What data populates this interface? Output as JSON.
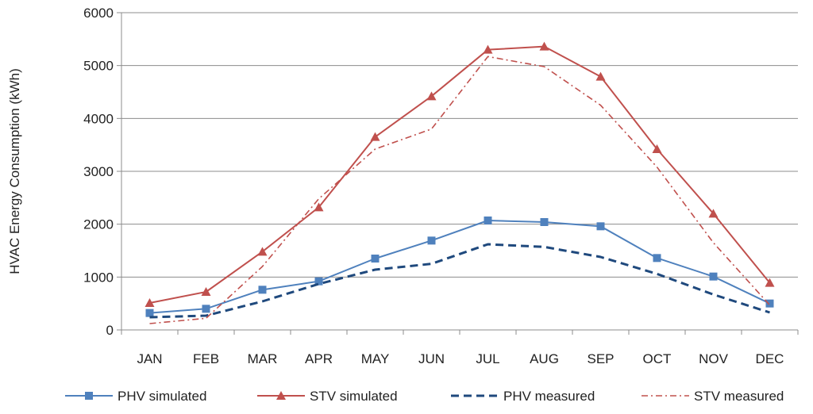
{
  "chart_data": {
    "type": "line",
    "title": "",
    "xlabel": "",
    "ylabel": "HVAC Energy Consumption (kWh)",
    "categories": [
      "JAN",
      "FEB",
      "MAR",
      "APR",
      "MAY",
      "JUN",
      "JUL",
      "AUG",
      "SEP",
      "OCT",
      "NOV",
      "DEC"
    ],
    "ylim": [
      0,
      6000
    ],
    "yticks": [
      0,
      1000,
      2000,
      3000,
      4000,
      5000,
      6000
    ],
    "grid": true,
    "legend_position": "bottom",
    "series": [
      {
        "name": "PHV simulated",
        "color": "#4f81bd",
        "line_style": "solid",
        "marker": "square",
        "values": [
          320,
          400,
          760,
          920,
          1350,
          1690,
          2070,
          2040,
          1960,
          1360,
          1010,
          500
        ]
      },
      {
        "name": "STV simulated",
        "color": "#c0504d",
        "line_style": "solid",
        "marker": "triangle",
        "values": [
          510,
          720,
          1480,
          2320,
          3650,
          4420,
          5300,
          5360,
          4790,
          3420,
          2200,
          890
        ]
      },
      {
        "name": "PHV measured",
        "color": "#1f497d",
        "line_style": "dashed",
        "marker": "none",
        "values": [
          240,
          270,
          540,
          870,
          1140,
          1250,
          1620,
          1570,
          1380,
          1060,
          670,
          330
        ]
      },
      {
        "name": "STV measured",
        "color": "#c0504d",
        "line_style": "dashdot",
        "marker": "none",
        "values": [
          120,
          220,
          1200,
          2480,
          3420,
          3800,
          5170,
          4980,
          4250,
          3080,
          1650,
          470
        ]
      }
    ]
  }
}
